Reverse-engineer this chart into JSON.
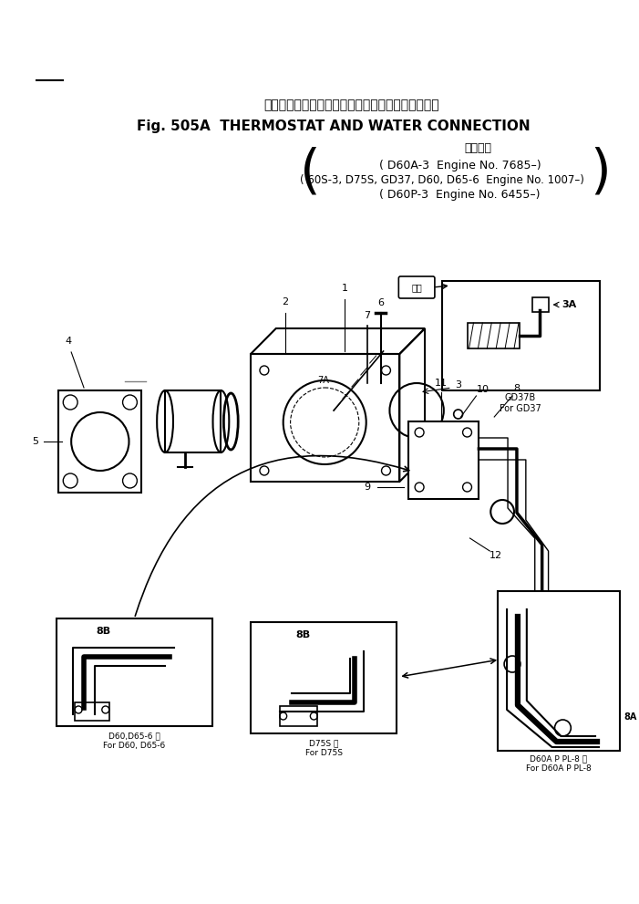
{
  "title_japanese": "サーモスタット　および　ウォータ　コネクション",
  "title_english": "Fig. 505A  THERMOSTAT AND WATER CONNECTION",
  "applicable_japanese": "適用号機",
  "line1": "( D60A-3  Engine No. 7685–)",
  "line2": "( 60S-3, D75S, GD37, D60, D65-6  Engine No. 1007–)",
  "line3": "( D60P-3  Engine No. 6455–)",
  "bg_color": "#ffffff",
  "ink_color": "#000000",
  "box1_label": "GD37B\nFor GD37",
  "box1_part": "3A",
  "box2_label": "D60,D65-6 用\nFor D60, D65-6",
  "box2_part": "8B",
  "box3_label": "D75S 用\nFor D75S",
  "box3_part": "8B",
  "box4_label": "D60A P PL-8 用\nFor D60A P PL-8",
  "box4_part": "8A",
  "part_labels": [
    "1",
    "2",
    "3",
    "4",
    "5",
    "6",
    "7",
    "7A",
    "8",
    "9",
    "10",
    "11",
    "12"
  ],
  "note_symbol": "注意"
}
